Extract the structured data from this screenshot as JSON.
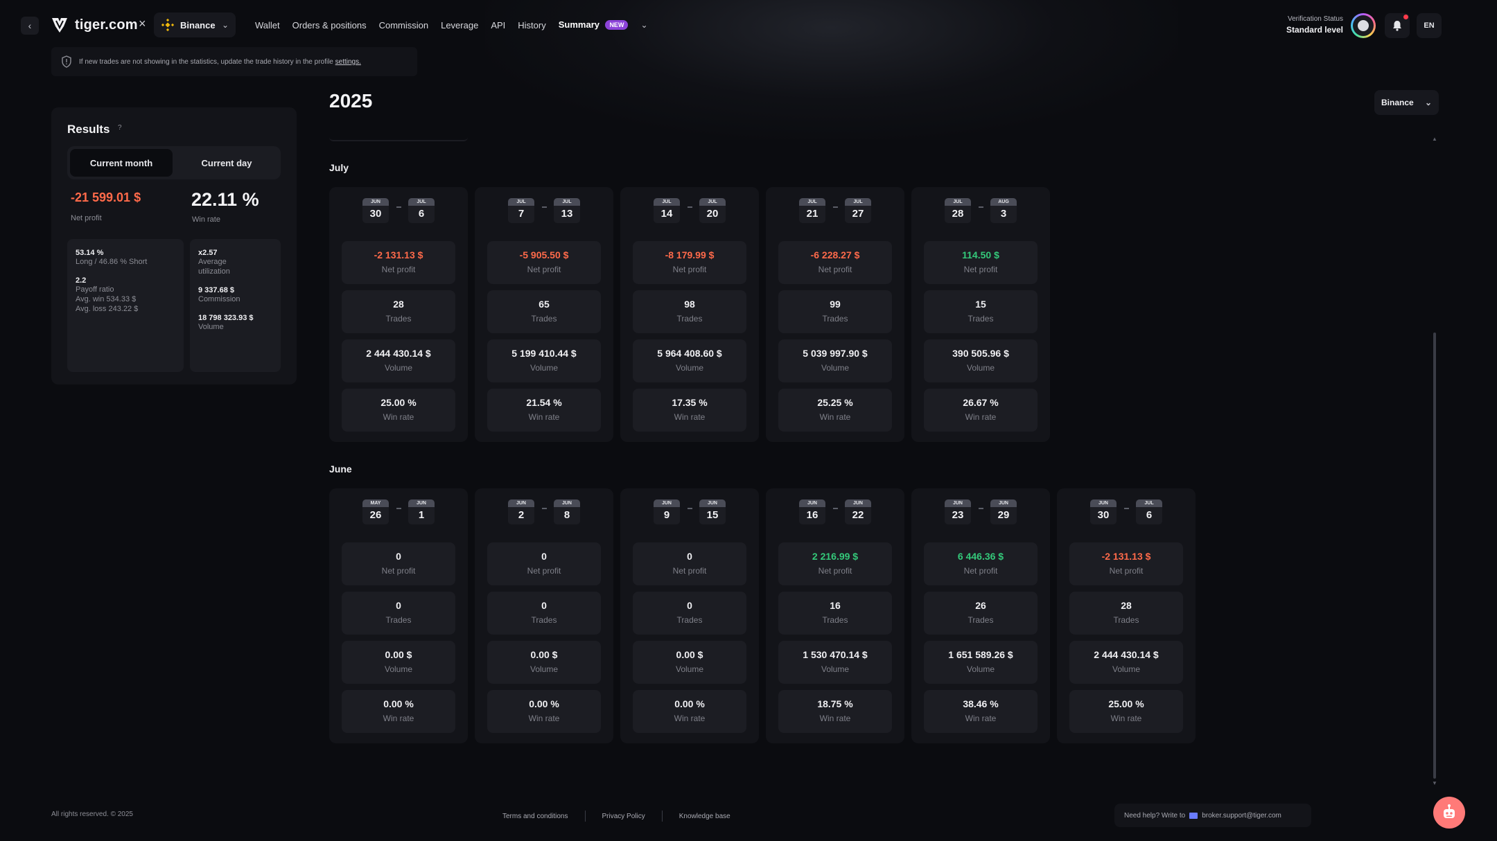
{
  "header": {
    "logo_text": "tiger.com",
    "close_symbol": "×",
    "exchange": "Binance",
    "nav": [
      "Wallet",
      "Orders & positions",
      "Commission",
      "Leverage",
      "API",
      "History",
      "Summary"
    ],
    "new_badge": "NEW",
    "verification_label": "Verification Status",
    "verification_level": "Standard level",
    "language": "EN"
  },
  "notice": {
    "text": "If new trades are not showing in the statistics, update the trade history in the profile",
    "link": "settings."
  },
  "year": "2025",
  "exchange_filter": "Binance",
  "results": {
    "title": "Results",
    "help": "?",
    "tabs": [
      "Current month",
      "Current day"
    ],
    "net_profit": "-21 599.01 $",
    "net_profit_label": "Net profit",
    "win_rate": "22.11 %",
    "win_rate_label": "Win rate",
    "long_short_value": "53.14 %",
    "long_short_label": "Long / 46.86 % Short",
    "payoff_value": "2.2",
    "payoff_label": "Payoff ratio",
    "avg_win": "Avg. win 534.33 $",
    "avg_loss": "Avg. loss 243.22 $",
    "util_value": "x2.57",
    "util_label_1": "Average",
    "util_label_2": "utilization",
    "commission_value": "9 337.68 $",
    "commission_label": "Commission",
    "volume_value": "18 798 323.93 $",
    "volume_label": "Volume"
  },
  "labels": {
    "net_profit": "Net profit",
    "trades": "Trades",
    "volume": "Volume",
    "win_rate": "Win rate"
  },
  "months": [
    {
      "name": "July",
      "weeks": [
        {
          "m1": "JUN",
          "d1": "30",
          "m2": "JUL",
          "d2": "6",
          "profit": "-2 131.13 $",
          "trades": "28",
          "volume": "2 444 430.14 $",
          "winrate": "25.00 %"
        },
        {
          "m1": "JUL",
          "d1": "7",
          "m2": "JUL",
          "d2": "13",
          "profit": "-5 905.50 $",
          "trades": "65",
          "volume": "5 199 410.44 $",
          "winrate": "21.54 %"
        },
        {
          "m1": "JUL",
          "d1": "14",
          "m2": "JUL",
          "d2": "20",
          "profit": "-8 179.99 $",
          "trades": "98",
          "volume": "5 964 408.60 $",
          "winrate": "17.35 %"
        },
        {
          "m1": "JUL",
          "d1": "21",
          "m2": "JUL",
          "d2": "27",
          "profit": "-6 228.27 $",
          "trades": "99",
          "volume": "5 039 997.90 $",
          "winrate": "25.25 %"
        },
        {
          "m1": "JUL",
          "d1": "28",
          "m2": "AUG",
          "d2": "3",
          "profit": "114.50 $",
          "trades": "15",
          "volume": "390 505.96 $",
          "winrate": "26.67 %"
        }
      ]
    },
    {
      "name": "June",
      "weeks": [
        {
          "m1": "MAY",
          "d1": "26",
          "m2": "JUN",
          "d2": "1",
          "profit": "0",
          "trades": "0",
          "volume": "0.00 $",
          "winrate": "0.00 %"
        },
        {
          "m1": "JUN",
          "d1": "2",
          "m2": "JUN",
          "d2": "8",
          "profit": "0",
          "trades": "0",
          "volume": "0.00 $",
          "winrate": "0.00 %"
        },
        {
          "m1": "JUN",
          "d1": "9",
          "m2": "JUN",
          "d2": "15",
          "profit": "0",
          "trades": "0",
          "volume": "0.00 $",
          "winrate": "0.00 %"
        },
        {
          "m1": "JUN",
          "d1": "16",
          "m2": "JUN",
          "d2": "22",
          "profit": "2 216.99 $",
          "trades": "16",
          "volume": "1 530 470.14 $",
          "winrate": "18.75 %"
        },
        {
          "m1": "JUN",
          "d1": "23",
          "m2": "JUN",
          "d2": "29",
          "profit": "6 446.36 $",
          "trades": "26",
          "volume": "1 651 589.26 $",
          "winrate": "38.46 %"
        },
        {
          "m1": "JUN",
          "d1": "30",
          "m2": "JUL",
          "d2": "6",
          "profit": "-2 131.13 $",
          "trades": "28",
          "volume": "2 444 430.14 $",
          "winrate": "25.00 %"
        }
      ]
    }
  ],
  "footer": {
    "copyright": "All rights reserved. © 2025",
    "links": [
      "Terms and conditions",
      "Privacy Policy",
      "Knowledge base"
    ],
    "help_text": "Need help? Write to",
    "help_email": "broker.support@tiger.com"
  },
  "colors": {
    "negative": "#ff6a4a",
    "positive": "#34c97a",
    "accent_badge": "#8c43d8",
    "binance": "#f0b90b"
  }
}
